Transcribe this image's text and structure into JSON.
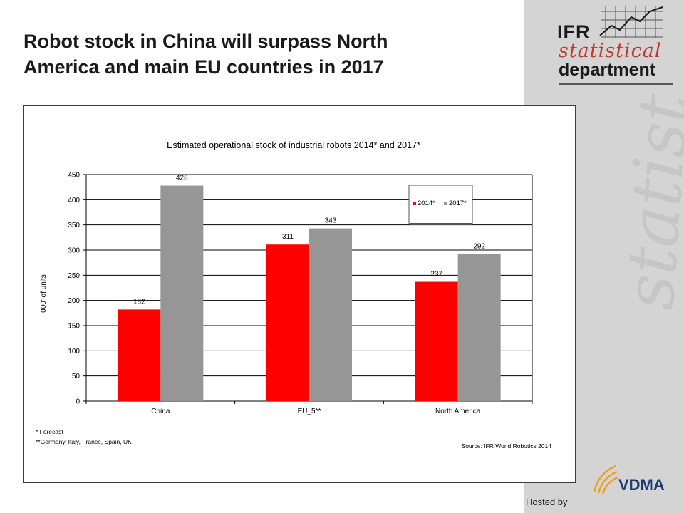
{
  "slide": {
    "title_line1": "Robot stock in China will surpass North",
    "title_line2": "America and main EU countries in 2017"
  },
  "logo": {
    "ifr": "IFR",
    "statistical": "statistical",
    "department": "department",
    "watermark": "statistical"
  },
  "footer": {
    "hosted_by": "Hosted by",
    "vdma": "VDMA"
  },
  "colors": {
    "series_2014": "#ff0000",
    "series_2017": "#969696",
    "panel": "#d4d4d4",
    "logo_red": "#c0392b",
    "vdma_orange": "#f0a020"
  },
  "chart_data": {
    "type": "bar",
    "title": "Estimated operational stock of industrial robots 2014* and 2017*",
    "xlabel": "",
    "ylabel": "000' of units",
    "categories": [
      "China",
      "EU_5**",
      "North America"
    ],
    "series": [
      {
        "name": "2014*",
        "values": [
          182,
          311,
          237
        ]
      },
      {
        "name": "2017*",
        "values": [
          428,
          343,
          292
        ]
      }
    ],
    "ylim": [
      0,
      450
    ],
    "yticks": [
      0,
      50,
      100,
      150,
      200,
      250,
      300,
      350,
      400,
      450
    ],
    "grid": true,
    "legend_position": "top-right",
    "footnotes": [
      "*  Forecast",
      "**Germany, Italy, France, Spain, UK"
    ],
    "source": "Source: IFR World Robotics 2014"
  }
}
